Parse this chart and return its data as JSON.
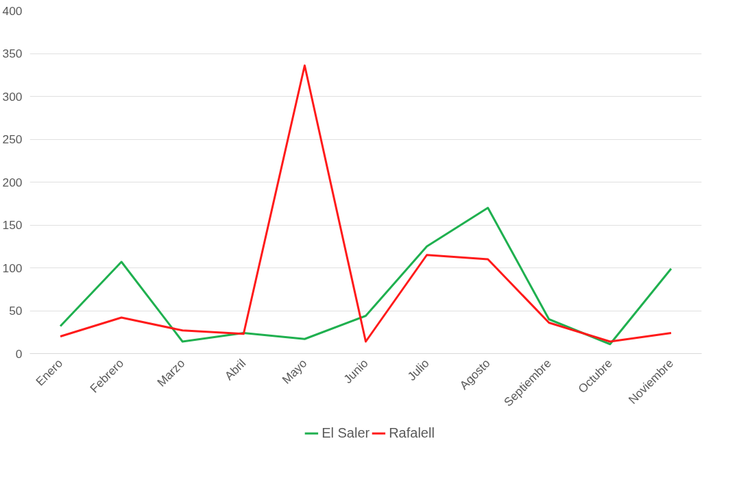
{
  "chart_data": {
    "type": "line",
    "categories": [
      "Enero",
      "Febrero",
      "Marzo",
      "Abril",
      "Mayo",
      "Junio",
      "Julio",
      "Agosto",
      "Septiembre",
      "Octubre",
      "Noviembre"
    ],
    "series": [
      {
        "name": "El Saler",
        "color": "#1fb04f",
        "values": [
          32,
          107,
          14,
          24,
          17,
          44,
          125,
          170,
          40,
          11,
          99
        ]
      },
      {
        "name": "Rafalell",
        "color": "#ff1a1a",
        "values": [
          20,
          42,
          27,
          23,
          336,
          14,
          115,
          110,
          36,
          14,
          24
        ]
      }
    ],
    "ylim": [
      0,
      400
    ],
    "yticks": [
      0,
      50,
      100,
      150,
      200,
      250,
      300,
      350,
      400
    ],
    "grid": "y",
    "legend": "bottom",
    "marker": "none",
    "line_style": "solid"
  }
}
